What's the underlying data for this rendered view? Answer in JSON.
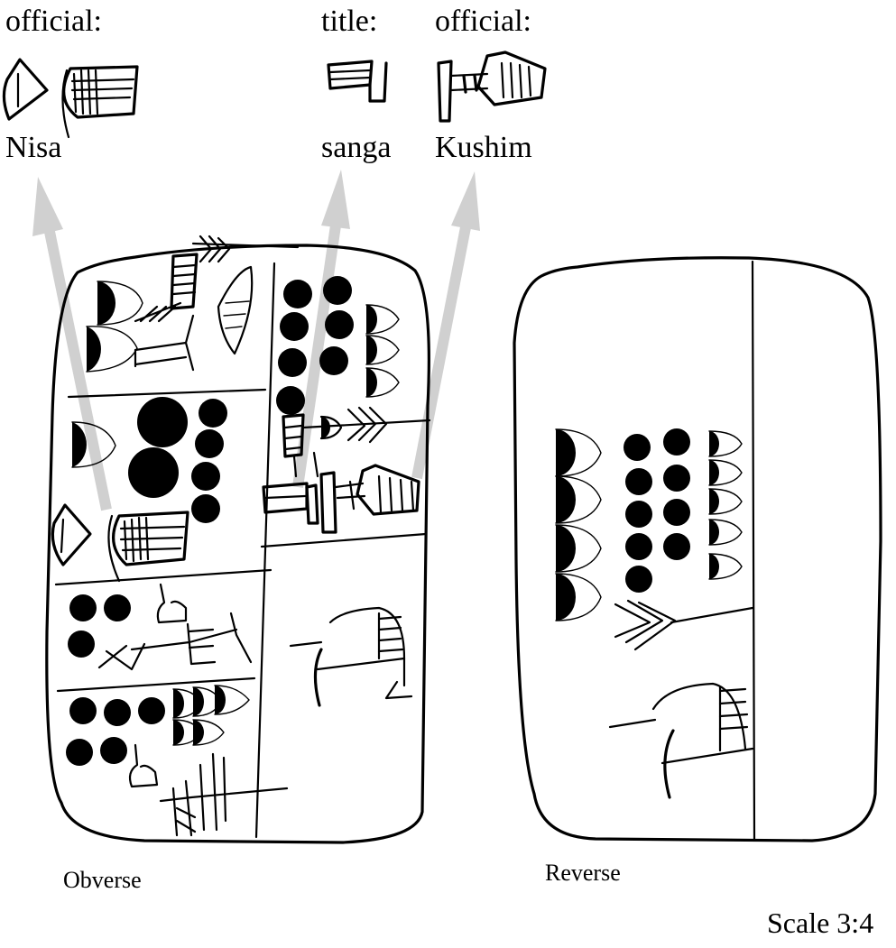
{
  "labels": {
    "official_left_role": "official:",
    "official_left_name": "Nisa",
    "title_role": "title:",
    "title_name": "sanga",
    "official_right_role": "official:",
    "official_right_name": "Kushim"
  },
  "captions": {
    "obverse": "Obverse",
    "reverse": "Reverse",
    "scale": "Scale 3:4"
  },
  "colors": {
    "ink": "#000000",
    "arrow": "#d0d0d0",
    "background": "#ffffff"
  }
}
